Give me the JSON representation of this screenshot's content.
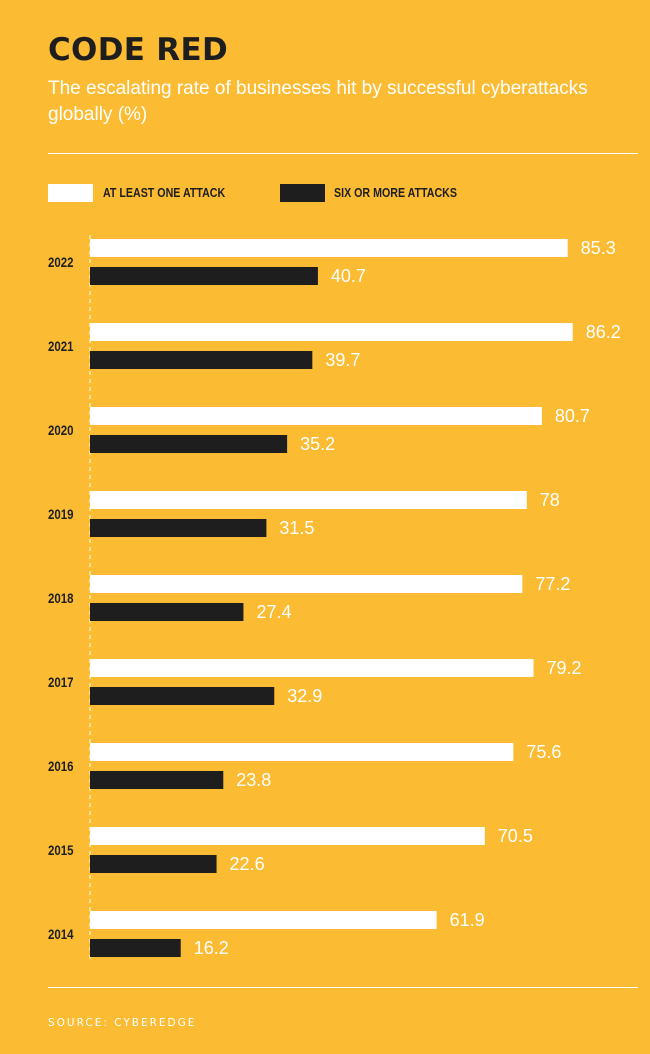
{
  "header": {
    "title": "CODE RED",
    "subtitle": "The escalating rate of businesses hit by successful cyberattacks globally (%)"
  },
  "footer": {
    "source": "SOURCE: CYBEREDGE"
  },
  "colors": {
    "background": "#FBBC33",
    "series_1": "#FFFFFF",
    "series_2": "#1E1E1E",
    "year_label": "#1E1E1E",
    "value_label": "#FFFFFF"
  },
  "chart_data": {
    "type": "bar",
    "orientation": "horizontal",
    "categories": [
      "2022",
      "2021",
      "2020",
      "2019",
      "2018",
      "2017",
      "2016",
      "2015",
      "2014"
    ],
    "series": [
      {
        "name": "AT LEAST ONE ATTACK",
        "values": [
          85.3,
          86.2,
          80.7,
          78,
          77.2,
          79.2,
          75.6,
          70.5,
          61.9
        ]
      },
      {
        "name": "SIX OR MORE ATTACKS",
        "values": [
          40.7,
          39.7,
          35.2,
          31.5,
          27.4,
          32.9,
          23.8,
          22.6,
          16.2
        ]
      }
    ],
    "xlim": [
      0,
      100
    ],
    "grid": false,
    "legend": "top-left",
    "data_labels": true
  }
}
